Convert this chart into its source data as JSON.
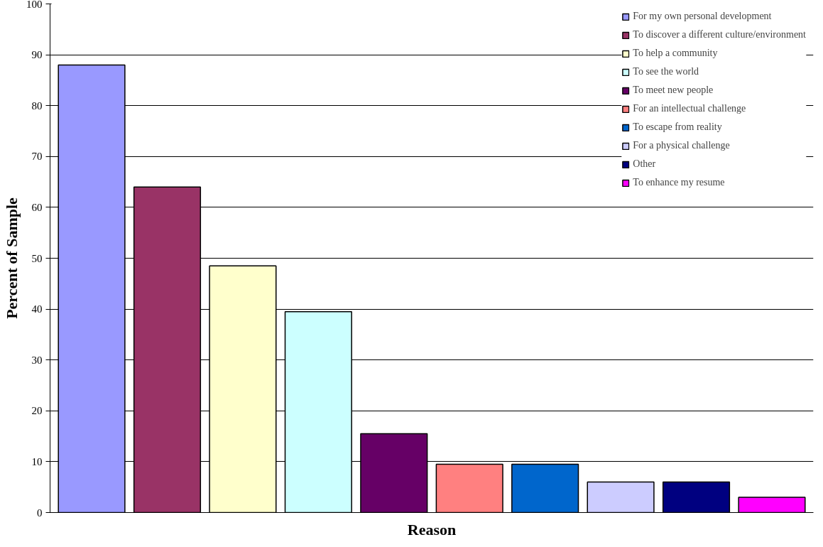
{
  "chart_data": {
    "type": "bar",
    "xlabel": "Reason",
    "ylabel": "Percent of Sample",
    "categories": [
      null,
      null,
      null,
      null,
      null,
      null,
      null,
      null,
      null,
      null
    ],
    "series": [
      {
        "name": "For my own personal development",
        "color": "#9999ff",
        "values": [
          88,
          null,
          null,
          null,
          null,
          null,
          null,
          null,
          null,
          null
        ]
      },
      {
        "name": "To discover a different culture/environment",
        "color": "#993366",
        "values": [
          null,
          64,
          null,
          null,
          null,
          null,
          null,
          null,
          null,
          null
        ]
      },
      {
        "name": "To help a community",
        "color": "#ffffcc",
        "values": [
          null,
          null,
          48.5,
          null,
          null,
          null,
          null,
          null,
          null,
          null
        ]
      },
      {
        "name": "To see the world",
        "color": "#ccffff",
        "values": [
          null,
          null,
          null,
          39.5,
          null,
          null,
          null,
          null,
          null,
          null
        ]
      },
      {
        "name": "To meet new people",
        "color": "#660066",
        "values": [
          null,
          null,
          null,
          null,
          15.5,
          null,
          null,
          null,
          null,
          null
        ]
      },
      {
        "name": "For an intellectual challenge",
        "color": "#ff8080",
        "values": [
          null,
          null,
          null,
          null,
          null,
          9.5,
          null,
          null,
          null,
          null
        ]
      },
      {
        "name": "To escape from reality",
        "color": "#0066cc",
        "values": [
          null,
          null,
          null,
          null,
          null,
          null,
          9.5,
          null,
          null,
          null
        ]
      },
      {
        "name": "For a physical challenge",
        "color": "#ccccff",
        "values": [
          null,
          null,
          null,
          null,
          null,
          null,
          null,
          6,
          null,
          null
        ]
      },
      {
        "name": "Other",
        "color": "#000080",
        "values": [
          null,
          null,
          null,
          null,
          null,
          null,
          null,
          null,
          6,
          null
        ]
      },
      {
        "name": "To enhance my resume",
        "color": "#ff00ff",
        "values": [
          null,
          null,
          null,
          null,
          null,
          null,
          null,
          null,
          null,
          3
        ]
      }
    ],
    "ylim": [
      0,
      100
    ],
    "yticks": [
      0,
      10,
      20,
      30,
      40,
      50,
      60,
      70,
      80,
      90,
      100
    ],
    "grid": "y",
    "legend": "top right"
  }
}
